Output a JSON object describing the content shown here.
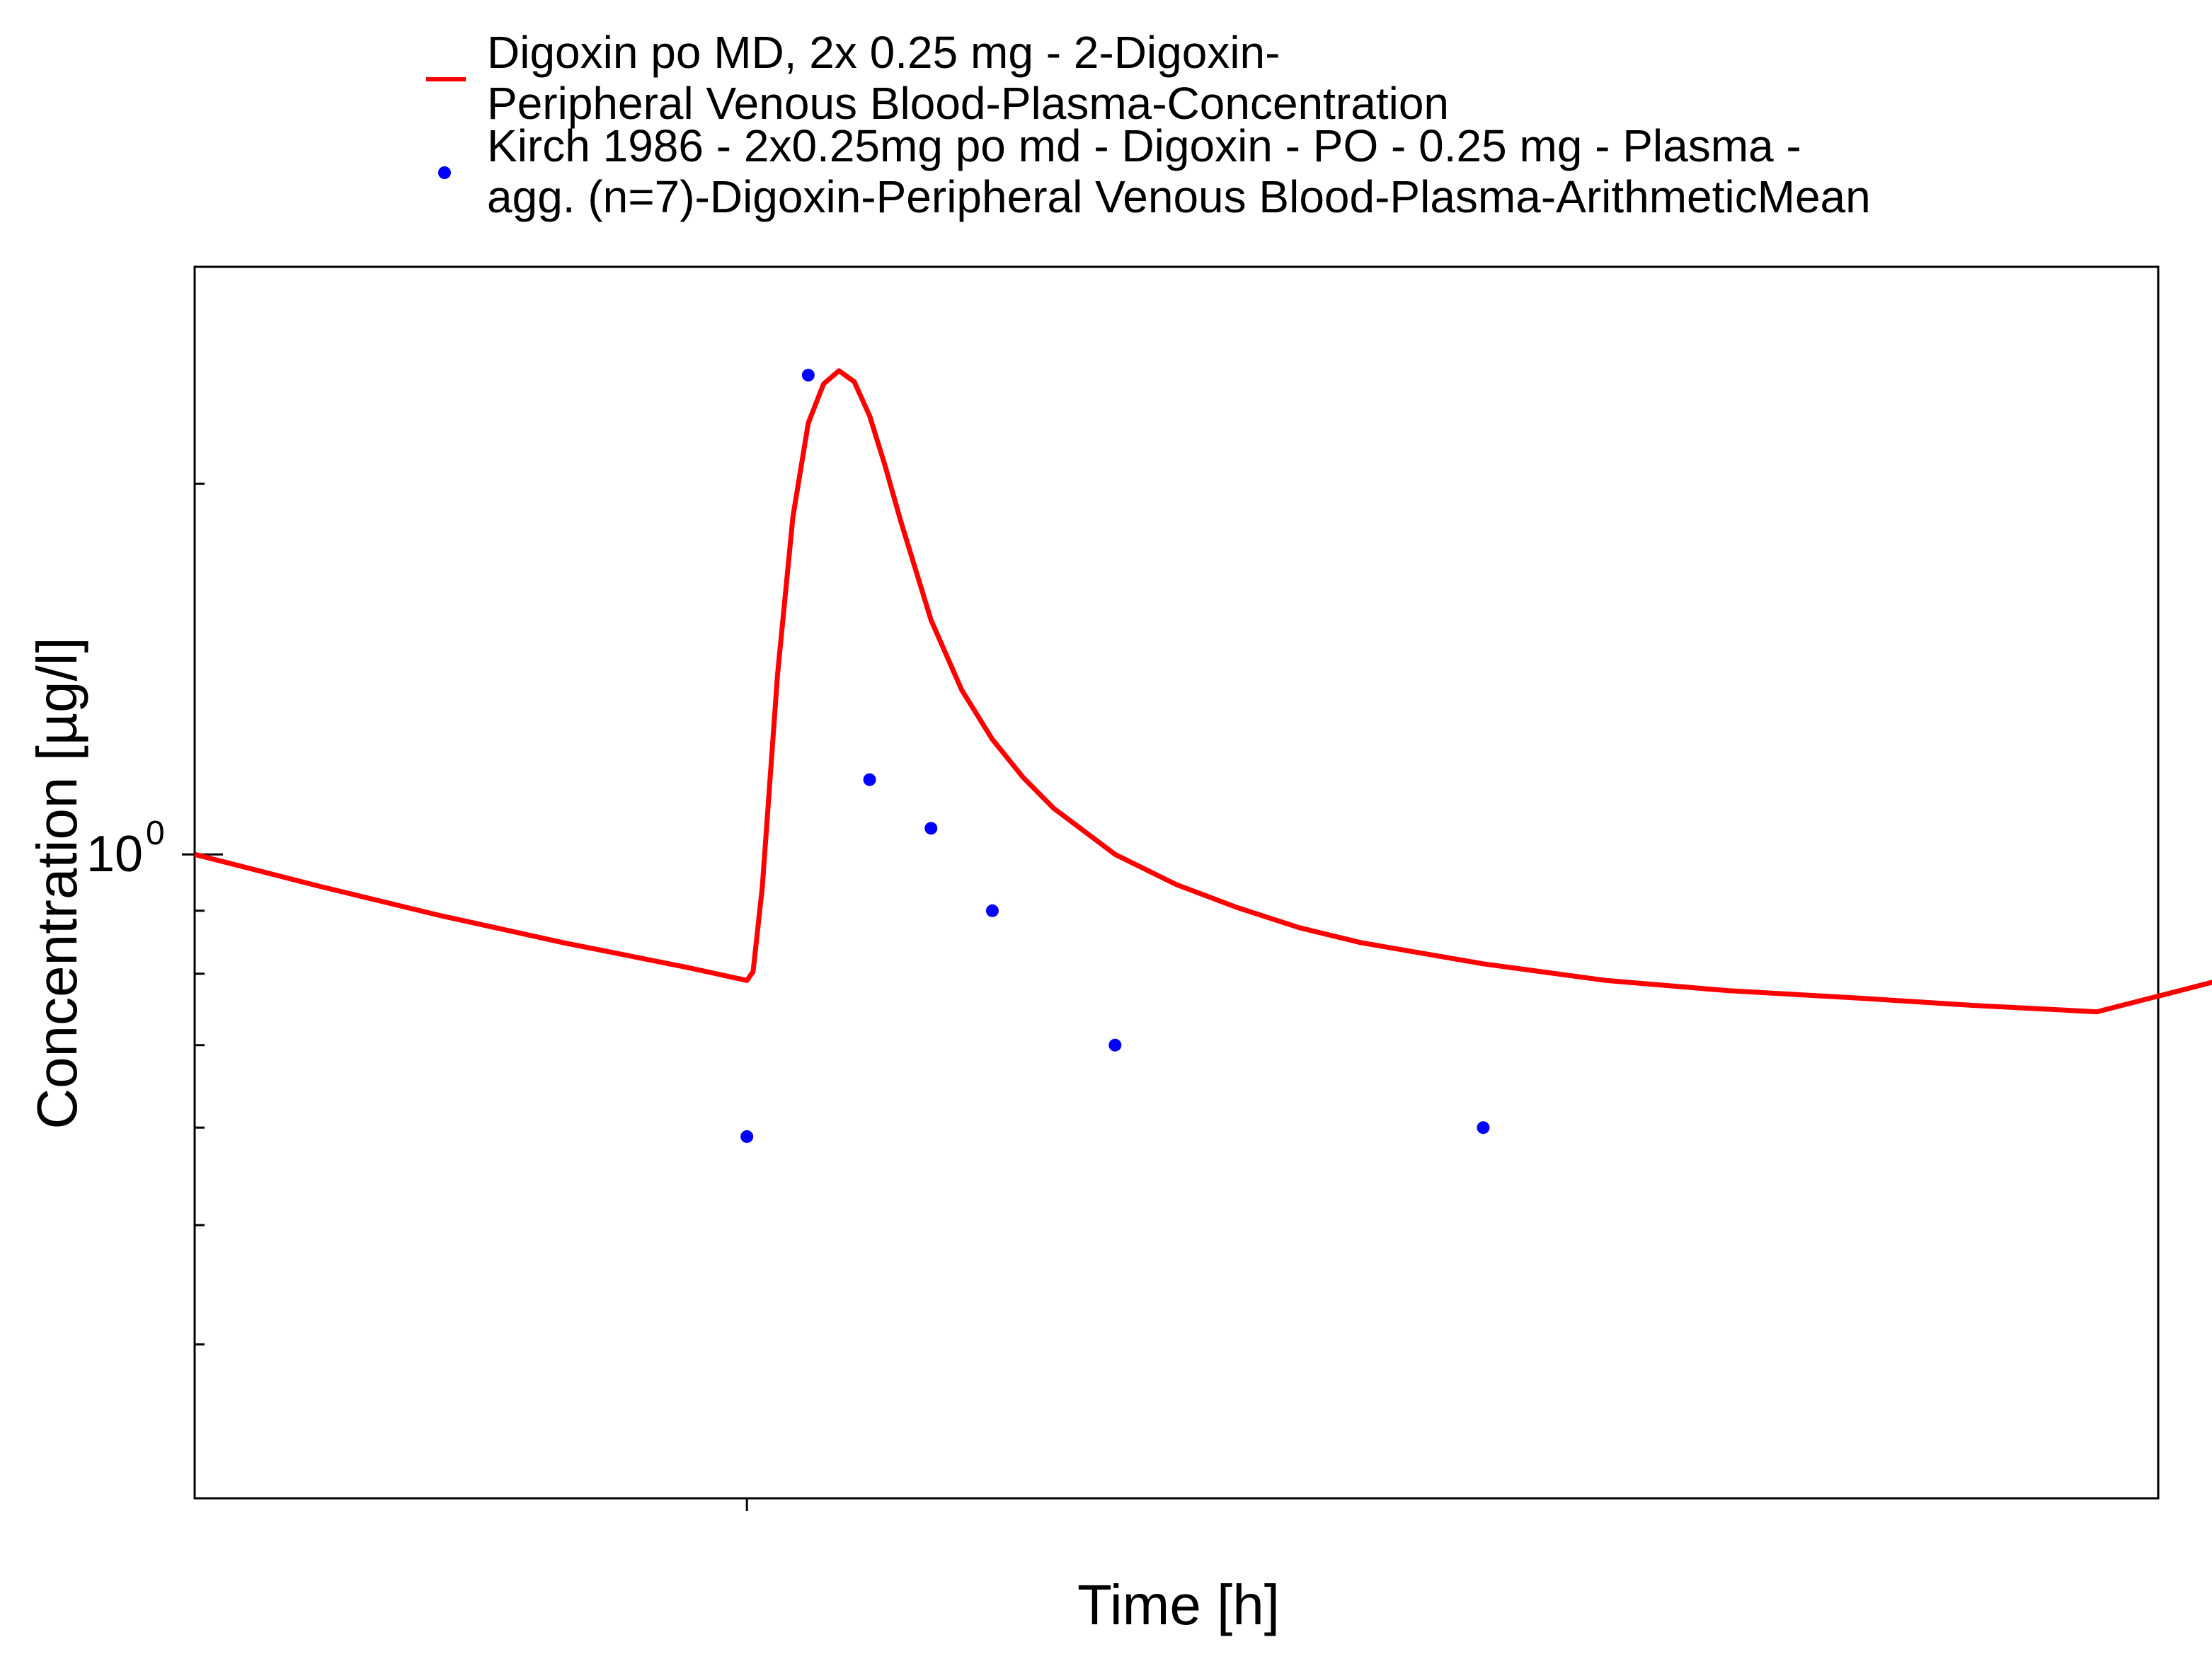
{
  "chart_data": {
    "type": "line",
    "title": "",
    "xlabel": "Time [h]",
    "ylabel": "Concentration [µg/l]",
    "y_scale": "log",
    "xlim": [
      -7,
      25
    ],
    "ylim": [
      0.3,
      3.0
    ],
    "x_ticks": [
      2
    ],
    "y_tick_labels": [
      {
        "value": 1,
        "base": "10",
        "exponent": "0"
      }
    ],
    "y_minor_ticks": [
      0.4,
      0.5,
      0.6,
      0.7,
      0.8,
      0.9,
      2,
      3
    ],
    "grid": false,
    "legend_position": "top",
    "colors": {
      "simulation": "#ff0000",
      "observed": "#0000ff"
    },
    "series": [
      {
        "name_lines": [
          "Digoxin po MD, 2x 0.25 mg - 2-Digoxin-",
          "Peripheral Venous Blood-Plasma-Concentration"
        ],
        "kind": "line",
        "color": "#ff0000",
        "x": [
          -7,
          -5,
          -3,
          -1,
          1,
          2,
          2.1,
          2.25,
          2.5,
          2.75,
          3,
          3.25,
          3.5,
          3.75,
          4,
          4.25,
          4.5,
          5,
          5.5,
          6,
          6.5,
          7,
          8,
          9,
          10,
          11,
          12,
          14,
          16,
          18,
          20,
          22,
          24,
          26
        ],
        "y": [
          1.0,
          0.943,
          0.892,
          0.848,
          0.81,
          0.79,
          0.803,
          0.94,
          1.4,
          1.88,
          2.24,
          2.41,
          2.47,
          2.42,
          2.27,
          2.07,
          1.87,
          1.55,
          1.36,
          1.24,
          1.155,
          1.09,
          1.0,
          0.945,
          0.905,
          0.872,
          0.848,
          0.815,
          0.79,
          0.775,
          0.765,
          0.754,
          0.745,
          0.79
        ]
      },
      {
        "name_lines": [
          "Kirch 1986 - 2x0.25mg po md - Digoxin - PO - 0.25 mg - Plasma -",
          "agg. (n=7)-Digoxin-Peripheral Venous Blood-Plasma-ArithmeticMean"
        ],
        "kind": "scatter",
        "color": "#0000ff",
        "x": [
          2,
          3,
          4,
          5,
          6,
          8,
          14
        ],
        "y": [
          0.59,
          2.45,
          1.15,
          1.05,
          0.9,
          0.7,
          0.6
        ]
      }
    ]
  }
}
